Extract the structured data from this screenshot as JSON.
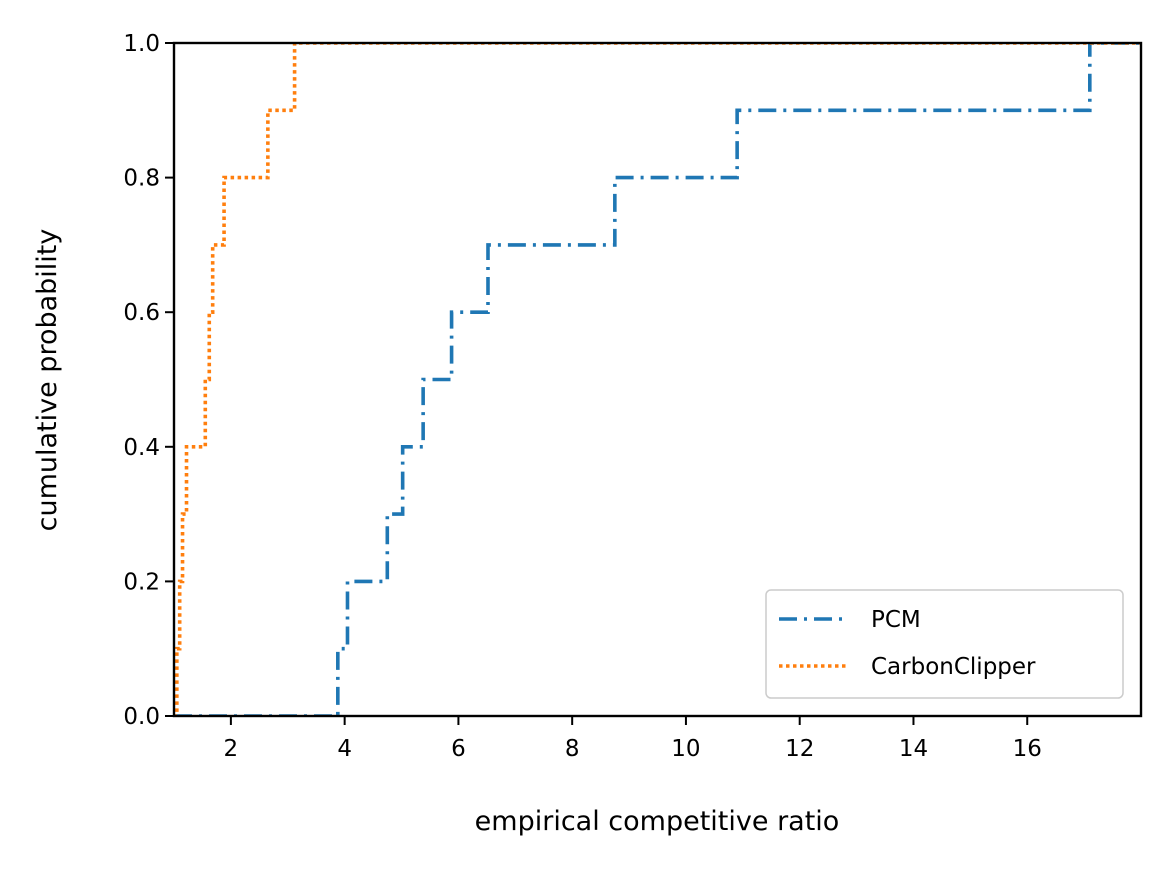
{
  "chart_data": {
    "type": "line",
    "step": true,
    "xlabel": "empirical competitive ratio",
    "ylabel": "cumulative probability",
    "xlim": [
      1,
      18
    ],
    "ylim": [
      0,
      1
    ],
    "x_ticks": [
      2,
      4,
      6,
      8,
      10,
      12,
      14,
      16
    ],
    "y_ticks": [
      0.0,
      0.2,
      0.4,
      0.6,
      0.8,
      1.0
    ],
    "x_tick_labels": [
      "2",
      "4",
      "6",
      "8",
      "10",
      "12",
      "14",
      "16"
    ],
    "y_tick_labels": [
      "0.0",
      "0.2",
      "0.4",
      "0.6",
      "0.8",
      "1.0"
    ],
    "grid": false,
    "legend_position": "bottom-right",
    "series": [
      {
        "name": "PCM",
        "color": "#1f77b4",
        "linestyle": "dashdot",
        "x": [
          3.88,
          4.05,
          4.75,
          5.02,
          5.38,
          5.88,
          6.52,
          8.75,
          10.9,
          17.1
        ],
        "y": [
          0.1,
          0.2,
          0.3,
          0.4,
          0.5,
          0.6,
          0.7,
          0.8,
          0.9,
          1.0
        ]
      },
      {
        "name": "CarbonClipper",
        "color": "#ff7f0e",
        "linestyle": "dotted",
        "x": [
          1.05,
          1.1,
          1.15,
          1.22,
          1.55,
          1.62,
          1.68,
          1.88,
          2.65,
          3.12
        ],
        "y": [
          0.1,
          0.2,
          0.3,
          0.4,
          0.5,
          0.6,
          0.7,
          0.8,
          0.9,
          1.0
        ]
      }
    ]
  }
}
